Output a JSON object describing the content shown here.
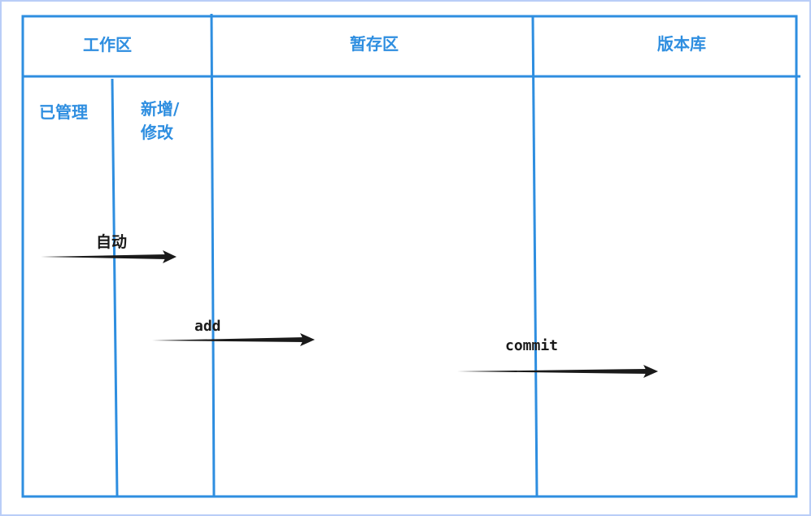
{
  "colors": {
    "line": "#2e8ee0",
    "text_blue": "#2e8ee0",
    "arrow": "#1a1a1a",
    "frame": "#b9cdf7"
  },
  "columns": {
    "working_area": "工作区",
    "staging_area": "暂存区",
    "repository": "版本库"
  },
  "working_subcolumns": {
    "managed": "已管理",
    "new_modified_line1": "新增/",
    "new_modified_line2": "修改"
  },
  "arrows": {
    "auto": "自动",
    "add": "add",
    "commit": "commit"
  }
}
